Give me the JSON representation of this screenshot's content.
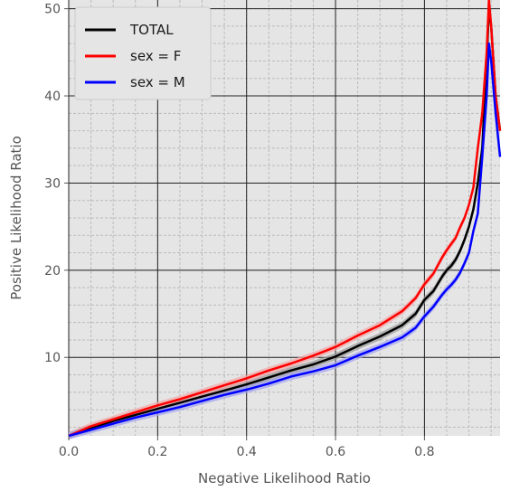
{
  "chart_data": {
    "type": "line",
    "title": "",
    "xlabel": "Negative Likelihood Ratio",
    "ylabel": "Positive Likelihood Ratio",
    "xlim": [
      0.0,
      0.97
    ],
    "ylim": [
      1,
      51
    ],
    "xticks": [
      0.0,
      0.2,
      0.4,
      0.6,
      0.8
    ],
    "xtick_labels": [
      "0.0",
      "0.2",
      "0.4",
      "0.6",
      "0.8"
    ],
    "yticks": [
      10,
      20,
      30,
      40,
      50
    ],
    "ytick_labels": [
      "10",
      "20",
      "30",
      "40",
      "50"
    ],
    "grid": true,
    "minor_grid": true,
    "legend_position": "top-left",
    "series": [
      {
        "name": "TOTAL",
        "color": "#000000",
        "band_color": "#9a9a9a",
        "x": [
          0.0,
          0.05,
          0.1,
          0.15,
          0.2,
          0.25,
          0.3,
          0.35,
          0.4,
          0.45,
          0.5,
          0.55,
          0.6,
          0.65,
          0.7,
          0.75,
          0.78,
          0.8,
          0.82,
          0.84,
          0.85,
          0.86,
          0.87,
          0.88,
          0.89,
          0.9,
          0.91,
          0.92,
          0.93,
          0.94,
          0.945,
          0.95,
          0.96,
          0.97
        ],
        "y": [
          1.0,
          1.9,
          2.7,
          3.4,
          4.1,
          4.8,
          5.5,
          6.2,
          6.9,
          7.7,
          8.5,
          9.2,
          10.1,
          11.3,
          12.4,
          13.7,
          15.0,
          16.6,
          17.6,
          19.3,
          20.0,
          20.5,
          21.2,
          22.2,
          23.5,
          25.0,
          27.0,
          30.0,
          34.0,
          44.0,
          50.0,
          48.0,
          40.0,
          36.0
        ]
      },
      {
        "name": "sex = F",
        "color": "#ff0000",
        "band_color": "#f4a6a6",
        "x": [
          0.0,
          0.05,
          0.1,
          0.15,
          0.2,
          0.25,
          0.3,
          0.35,
          0.4,
          0.45,
          0.5,
          0.55,
          0.6,
          0.65,
          0.7,
          0.75,
          0.78,
          0.8,
          0.82,
          0.84,
          0.85,
          0.86,
          0.87,
          0.88,
          0.89,
          0.9,
          0.91,
          0.92,
          0.93,
          0.94,
          0.945,
          0.95,
          0.96,
          0.97
        ],
        "y": [
          1.0,
          2.1,
          2.9,
          3.7,
          4.5,
          5.2,
          6.0,
          6.8,
          7.6,
          8.5,
          9.3,
          10.2,
          11.2,
          12.5,
          13.7,
          15.3,
          16.8,
          18.4,
          19.6,
          21.5,
          22.3,
          23.0,
          23.7,
          24.9,
          26.0,
          27.5,
          29.5,
          34.0,
          38.0,
          45.0,
          51.0,
          48.0,
          40.0,
          36.0
        ]
      },
      {
        "name": "sex = M",
        "color": "#0000ff",
        "band_color": "#a3a3f0",
        "x": [
          0.0,
          0.05,
          0.1,
          0.15,
          0.2,
          0.25,
          0.3,
          0.35,
          0.4,
          0.45,
          0.5,
          0.55,
          0.6,
          0.65,
          0.7,
          0.75,
          0.78,
          0.8,
          0.82,
          0.84,
          0.85,
          0.86,
          0.87,
          0.88,
          0.89,
          0.9,
          0.91,
          0.92,
          0.93,
          0.94,
          0.945,
          0.95,
          0.96,
          0.97
        ],
        "y": [
          1.0,
          1.7,
          2.4,
          3.1,
          3.7,
          4.3,
          5.0,
          5.7,
          6.3,
          7.0,
          7.8,
          8.4,
          9.1,
          10.2,
          11.2,
          12.3,
          13.4,
          14.7,
          15.8,
          17.2,
          17.8,
          18.3,
          18.9,
          19.7,
          20.8,
          22.0,
          24.5,
          26.5,
          33.0,
          40.0,
          46.0,
          44.0,
          38.0,
          33.0
        ]
      }
    ]
  }
}
